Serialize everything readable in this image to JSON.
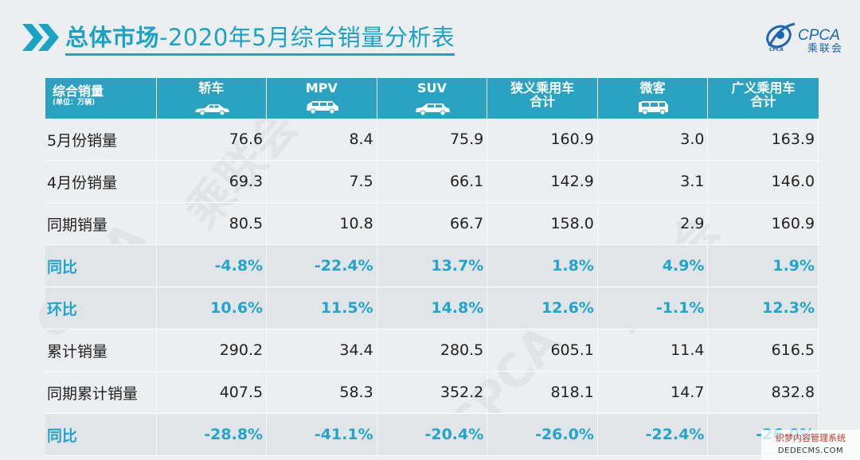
{
  "header": {
    "title_bold": "总体市场",
    "title_rest": "-2020年5月综合销量分析表"
  },
  "logo": {
    "text": "CPCA",
    "cn": "乘联会",
    "sub": "CPCA"
  },
  "table": {
    "corner_label": "综合销量",
    "corner_unit": "(单位：万辆)",
    "columns": [
      {
        "line1": "轿车",
        "line2": "",
        "icon": "sedan-icon"
      },
      {
        "line1": "MPV",
        "line2": "",
        "icon": "mpv-icon"
      },
      {
        "line1": "SUV",
        "line2": "",
        "icon": "suv-icon"
      },
      {
        "line1": "狭义乘用车",
        "line2": "合计",
        "icon": ""
      },
      {
        "line1": "微客",
        "line2": "",
        "icon": "minivan-icon"
      },
      {
        "line1": "广义乘用车",
        "line2": "合计",
        "icon": ""
      }
    ],
    "rows": [
      {
        "label": "5月份销量",
        "highlight": false,
        "values": [
          "76.6",
          "8.4",
          "75.9",
          "160.9",
          "3.0",
          "163.9"
        ]
      },
      {
        "label": "4月份销量",
        "highlight": false,
        "values": [
          "69.3",
          "7.5",
          "66.1",
          "142.9",
          "3.1",
          "146.0"
        ]
      },
      {
        "label": "同期销量",
        "highlight": false,
        "values": [
          "80.5",
          "10.8",
          "66.7",
          "158.0",
          "2.9",
          "160.9"
        ]
      },
      {
        "label": "同比",
        "highlight": true,
        "values": [
          "-4.8%",
          "-22.4%",
          "13.7%",
          "1.8%",
          "4.9%",
          "1.9%"
        ]
      },
      {
        "label": "环比",
        "highlight": true,
        "values": [
          "10.6%",
          "11.5%",
          "14.8%",
          "12.6%",
          "-1.1%",
          "12.3%"
        ]
      },
      {
        "label": "累计销量",
        "highlight": false,
        "values": [
          "290.2",
          "34.4",
          "280.5",
          "605.1",
          "11.4",
          "616.5"
        ]
      },
      {
        "label": "同期累计销量",
        "highlight": false,
        "values": [
          "407.5",
          "58.3",
          "352.2",
          "818.1",
          "14.7",
          "832.8"
        ]
      },
      {
        "label": "同比",
        "highlight": true,
        "values": [
          "-28.8%",
          "-41.1%",
          "-20.4%",
          "-26.0%",
          "-22.4%",
          "-26.0%"
        ]
      }
    ]
  },
  "footer": {
    "line1": "织梦内容管理系统",
    "line2": "DEDECMS.COM"
  },
  "colors": {
    "accent": "#2aa3c3",
    "highlight_text": "#21a4cd",
    "logo_blue": "#1a66b2"
  }
}
